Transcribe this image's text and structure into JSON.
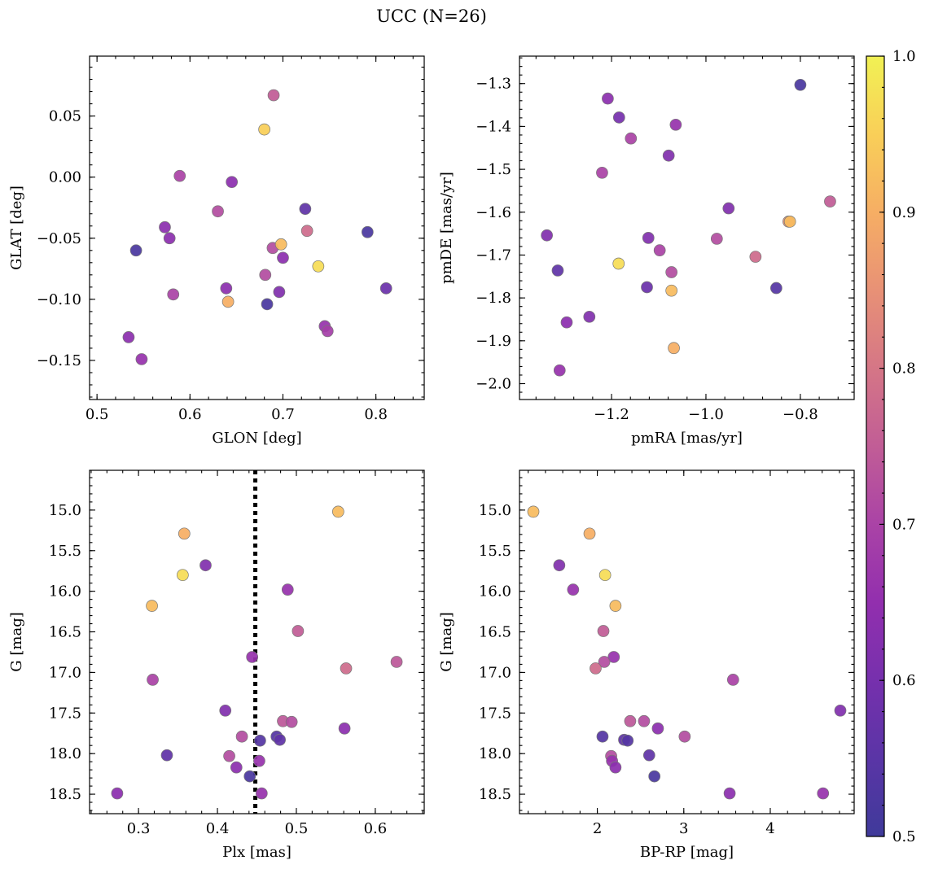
{
  "chart_data": {
    "title": "UCC (N=26)",
    "colorbar": {
      "colormap": "plasma",
      "min": 0.5,
      "max": 1.0,
      "ticks": [
        0.5,
        0.6,
        0.7,
        0.8,
        0.9,
        1.0
      ],
      "tick_labels": [
        "0.5",
        "0.6",
        "0.7",
        "0.8",
        "0.9",
        "1.0"
      ]
    },
    "panels": [
      {
        "type": "scatter",
        "xlabel": "GLON [deg]",
        "ylabel": "GLAT [deg]",
        "xlim": [
          0.492,
          0.852
        ],
        "ylim": [
          -0.182,
          0.099
        ],
        "y_inverted": false,
        "xticks": [
          0.5,
          0.6,
          0.7,
          0.8
        ],
        "xtick_labels": [
          "0.5",
          "0.6",
          "0.7",
          "0.8"
        ],
        "xminor": 0.02,
        "yticks": [
          -0.15,
          -0.1,
          -0.05,
          0.0,
          0.05
        ],
        "ytick_labels": [
          "−0.15",
          "−0.10",
          "−0.05",
          "0.00",
          "0.05"
        ],
        "yminor": 0.01,
        "points": [
          {
            "x": 0.69,
            "y": 0.067,
            "c": 0.75
          },
          {
            "x": 0.68,
            "y": 0.039,
            "c": 0.95
          },
          {
            "x": 0.589,
            "y": 0.001,
            "c": 0.7
          },
          {
            "x": 0.645,
            "y": -0.004,
            "c": 0.64
          },
          {
            "x": 0.63,
            "y": -0.028,
            "c": 0.72
          },
          {
            "x": 0.724,
            "y": -0.026,
            "c": 0.56
          },
          {
            "x": 0.573,
            "y": -0.041,
            "c": 0.64
          },
          {
            "x": 0.578,
            "y": -0.05,
            "c": 0.64
          },
          {
            "x": 0.791,
            "y": -0.045,
            "c": 0.52
          },
          {
            "x": 0.726,
            "y": -0.044,
            "c": 0.78
          },
          {
            "x": 0.542,
            "y": -0.06,
            "c": 0.52
          },
          {
            "x": 0.689,
            "y": -0.058,
            "c": 0.72
          },
          {
            "x": 0.698,
            "y": -0.055,
            "c": 0.92
          },
          {
            "x": 0.7,
            "y": -0.066,
            "c": 0.64
          },
          {
            "x": 0.738,
            "y": -0.073,
            "c": 0.97
          },
          {
            "x": 0.681,
            "y": -0.08,
            "c": 0.72
          },
          {
            "x": 0.639,
            "y": -0.091,
            "c": 0.64
          },
          {
            "x": 0.696,
            "y": -0.094,
            "c": 0.62
          },
          {
            "x": 0.582,
            "y": -0.096,
            "c": 0.7
          },
          {
            "x": 0.811,
            "y": -0.091,
            "c": 0.58
          },
          {
            "x": 0.641,
            "y": -0.102,
            "c": 0.9
          },
          {
            "x": 0.683,
            "y": -0.104,
            "c": 0.52
          },
          {
            "x": 0.745,
            "y": -0.122,
            "c": 0.66
          },
          {
            "x": 0.748,
            "y": -0.126,
            "c": 0.69
          },
          {
            "x": 0.534,
            "y": -0.131,
            "c": 0.64
          },
          {
            "x": 0.548,
            "y": -0.149,
            "c": 0.66
          }
        ]
      },
      {
        "type": "scatter",
        "xlabel": "pmRA [mas/yr]",
        "ylabel": "pmDE [mas/yr]",
        "xlim": [
          -1.395,
          -0.686
        ],
        "ylim": [
          -2.037,
          -1.236
        ],
        "y_inverted": false,
        "xticks": [
          -1.2,
          -1.0,
          -0.8
        ],
        "xtick_labels": [
          "−1.2",
          "−1.0",
          "−0.8"
        ],
        "xminor": 0.04,
        "yticks": [
          -2.0,
          -1.9,
          -1.8,
          -1.7,
          -1.6,
          -1.5,
          -1.4,
          -1.3
        ],
        "ytick_labels": [
          "−2.0",
          "−1.9",
          "−1.8",
          "−1.7",
          "−1.6",
          "−1.5",
          "−1.4",
          "−1.3"
        ],
        "yminor": 0.02,
        "points": [
          {
            "x": -0.8,
            "y": -1.303,
            "c": 0.52
          },
          {
            "x": -1.208,
            "y": -1.335,
            "c": 0.64
          },
          {
            "x": -1.184,
            "y": -1.379,
            "c": 0.6
          },
          {
            "x": -1.064,
            "y": -1.396,
            "c": 0.66
          },
          {
            "x": -1.159,
            "y": -1.428,
            "c": 0.7
          },
          {
            "x": -1.079,
            "y": -1.468,
            "c": 0.62
          },
          {
            "x": -1.22,
            "y": -1.508,
            "c": 0.7
          },
          {
            "x": -0.952,
            "y": -1.591,
            "c": 0.62
          },
          {
            "x": -0.737,
            "y": -1.575,
            "c": 0.75
          },
          {
            "x": -0.825,
            "y": -1.622,
            "c": 0.85
          },
          {
            "x": -0.822,
            "y": -1.622,
            "c": 0.92
          },
          {
            "x": -1.337,
            "y": -1.654,
            "c": 0.62
          },
          {
            "x": -1.122,
            "y": -1.66,
            "c": 0.62
          },
          {
            "x": -0.977,
            "y": -1.662,
            "c": 0.72
          },
          {
            "x": -1.098,
            "y": -1.689,
            "c": 0.7
          },
          {
            "x": -0.895,
            "y": -1.704,
            "c": 0.78
          },
          {
            "x": -1.185,
            "y": -1.72,
            "c": 0.97
          },
          {
            "x": -1.314,
            "y": -1.736,
            "c": 0.56
          },
          {
            "x": -1.073,
            "y": -1.74,
            "c": 0.72
          },
          {
            "x": -1.125,
            "y": -1.775,
            "c": 0.58
          },
          {
            "x": -1.073,
            "y": -1.783,
            "c": 0.92
          },
          {
            "x": -0.851,
            "y": -1.777,
            "c": 0.54
          },
          {
            "x": -1.247,
            "y": -1.844,
            "c": 0.62
          },
          {
            "x": -1.295,
            "y": -1.857,
            "c": 0.64
          },
          {
            "x": -1.068,
            "y": -1.917,
            "c": 0.9
          },
          {
            "x": -1.31,
            "y": -1.969,
            "c": 0.66
          }
        ]
      },
      {
        "type": "scatter",
        "xlabel": "Plx [mas]",
        "ylabel": "G [mag]",
        "xlim": [
          0.238,
          0.662
        ],
        "ylim": [
          14.51,
          18.74
        ],
        "y_inverted": true,
        "xticks": [
          0.3,
          0.4,
          0.5,
          0.6
        ],
        "xtick_labels": [
          "0.3",
          "0.4",
          "0.5",
          "0.6"
        ],
        "xminor": 0.02,
        "yticks": [
          15.0,
          15.5,
          16.0,
          16.5,
          17.0,
          17.5,
          18.0,
          18.5
        ],
        "ytick_labels": [
          "15.0",
          "15.5",
          "16.0",
          "16.5",
          "17.0",
          "17.5",
          "18.0",
          "18.5"
        ],
        "yminor": 0.1,
        "vline": {
          "x": 0.448
        },
        "points": [
          {
            "x": 0.553,
            "y": 15.02,
            "c": 0.92
          },
          {
            "x": 0.358,
            "y": 15.29,
            "c": 0.9
          },
          {
            "x": 0.385,
            "y": 15.68,
            "c": 0.62
          },
          {
            "x": 0.356,
            "y": 15.8,
            "c": 0.97
          },
          {
            "x": 0.489,
            "y": 15.98,
            "c": 0.66
          },
          {
            "x": 0.317,
            "y": 16.18,
            "c": 0.92
          },
          {
            "x": 0.502,
            "y": 16.49,
            "c": 0.75
          },
          {
            "x": 0.444,
            "y": 16.81,
            "c": 0.66
          },
          {
            "x": 0.627,
            "y": 16.87,
            "c": 0.74
          },
          {
            "x": 0.563,
            "y": 16.95,
            "c": 0.78
          },
          {
            "x": 0.318,
            "y": 17.09,
            "c": 0.7
          },
          {
            "x": 0.41,
            "y": 17.47,
            "c": 0.62
          },
          {
            "x": 0.483,
            "y": 17.6,
            "c": 0.74
          },
          {
            "x": 0.494,
            "y": 17.61,
            "c": 0.72
          },
          {
            "x": 0.561,
            "y": 17.69,
            "c": 0.64
          },
          {
            "x": 0.431,
            "y": 17.79,
            "c": 0.72
          },
          {
            "x": 0.475,
            "y": 17.79,
            "c": 0.54
          },
          {
            "x": 0.479,
            "y": 17.83,
            "c": 0.56
          },
          {
            "x": 0.454,
            "y": 17.84,
            "c": 0.54
          },
          {
            "x": 0.336,
            "y": 18.02,
            "c": 0.56
          },
          {
            "x": 0.415,
            "y": 18.03,
            "c": 0.72
          },
          {
            "x": 0.453,
            "y": 18.09,
            "c": 0.66
          },
          {
            "x": 0.424,
            "y": 18.17,
            "c": 0.64
          },
          {
            "x": 0.441,
            "y": 18.28,
            "c": 0.52
          },
          {
            "x": 0.273,
            "y": 18.49,
            "c": 0.64
          },
          {
            "x": 0.456,
            "y": 18.49,
            "c": 0.66
          }
        ]
      },
      {
        "type": "scatter",
        "xlabel": "BP-RP [mag]",
        "ylabel": "G [mag]",
        "xlim": [
          1.1,
          4.97
        ],
        "ylim": [
          14.51,
          18.74
        ],
        "y_inverted": true,
        "xticks": [
          2,
          3,
          4
        ],
        "xtick_labels": [
          "2",
          "3",
          "4"
        ],
        "xminor": 0.2,
        "yticks": [
          15.0,
          15.5,
          16.0,
          16.5,
          17.0,
          17.5,
          18.0,
          18.5
        ],
        "ytick_labels": [
          "15.0",
          "15.5",
          "16.0",
          "16.5",
          "17.0",
          "17.5",
          "18.0",
          "18.5"
        ],
        "yminor": 0.1,
        "points": [
          {
            "x": 1.26,
            "y": 15.02,
            "c": 0.92
          },
          {
            "x": 1.91,
            "y": 15.29,
            "c": 0.9
          },
          {
            "x": 1.56,
            "y": 15.68,
            "c": 0.62
          },
          {
            "x": 2.09,
            "y": 15.8,
            "c": 0.97
          },
          {
            "x": 1.72,
            "y": 15.98,
            "c": 0.66
          },
          {
            "x": 2.21,
            "y": 16.18,
            "c": 0.92
          },
          {
            "x": 2.07,
            "y": 16.49,
            "c": 0.75
          },
          {
            "x": 2.19,
            "y": 16.81,
            "c": 0.66
          },
          {
            "x": 2.08,
            "y": 16.87,
            "c": 0.72
          },
          {
            "x": 1.98,
            "y": 16.95,
            "c": 0.78
          },
          {
            "x": 3.57,
            "y": 17.09,
            "c": 0.7
          },
          {
            "x": 4.81,
            "y": 17.47,
            "c": 0.62
          },
          {
            "x": 2.38,
            "y": 17.6,
            "c": 0.74
          },
          {
            "x": 2.54,
            "y": 17.6,
            "c": 0.72
          },
          {
            "x": 2.7,
            "y": 17.69,
            "c": 0.64
          },
          {
            "x": 2.06,
            "y": 17.79,
            "c": 0.54
          },
          {
            "x": 3.01,
            "y": 17.79,
            "c": 0.72
          },
          {
            "x": 2.31,
            "y": 17.83,
            "c": 0.56
          },
          {
            "x": 2.35,
            "y": 17.84,
            "c": 0.54
          },
          {
            "x": 2.6,
            "y": 18.02,
            "c": 0.56
          },
          {
            "x": 2.16,
            "y": 18.03,
            "c": 0.72
          },
          {
            "x": 2.17,
            "y": 18.09,
            "c": 0.66
          },
          {
            "x": 2.21,
            "y": 18.17,
            "c": 0.64
          },
          {
            "x": 2.66,
            "y": 18.28,
            "c": 0.52
          },
          {
            "x": 3.53,
            "y": 18.49,
            "c": 0.64
          },
          {
            "x": 4.61,
            "y": 18.49,
            "c": 0.66
          }
        ]
      }
    ]
  }
}
